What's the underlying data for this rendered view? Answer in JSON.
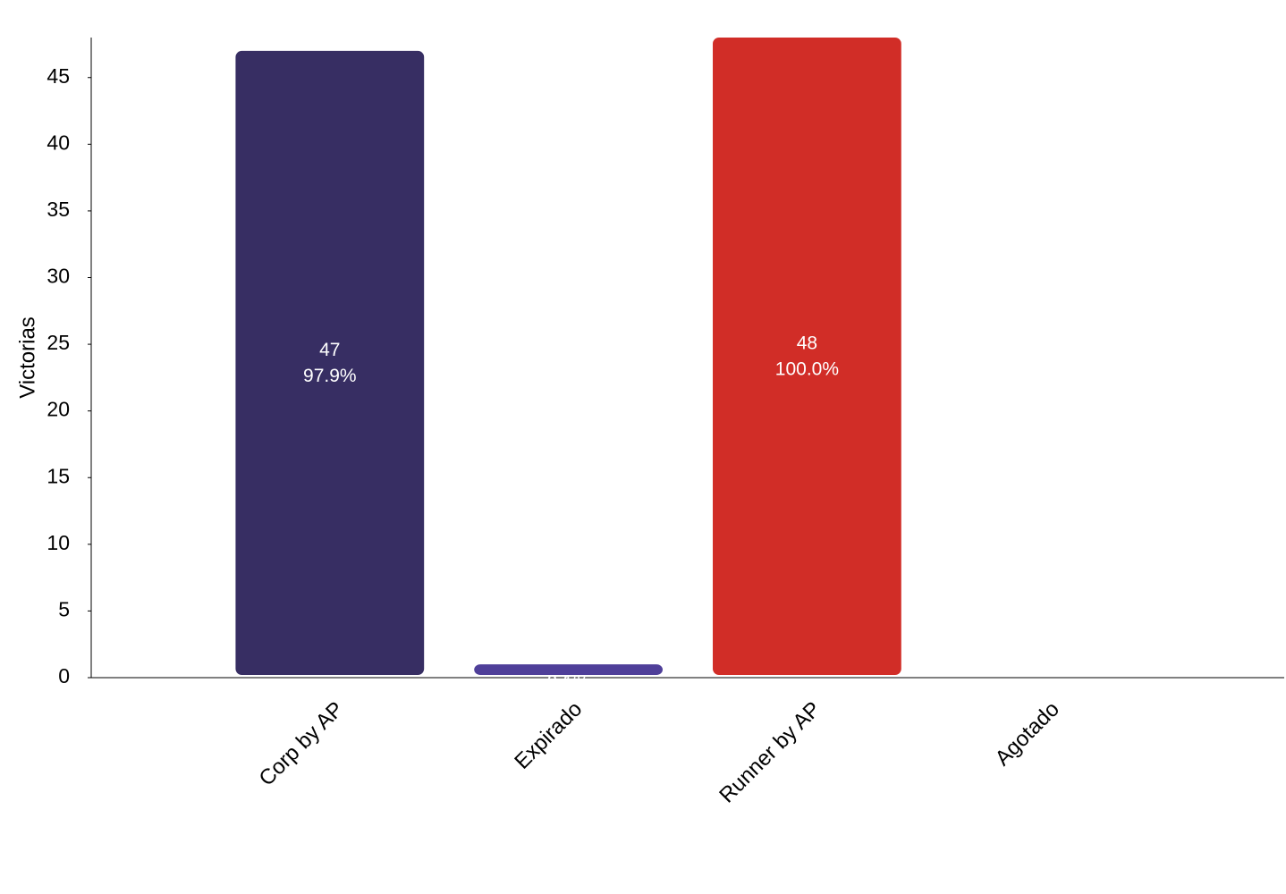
{
  "chart_data": {
    "type": "bar",
    "y_label": "Victorias",
    "categories": [
      "Corp by AP",
      "Expirado",
      "Runner by AP",
      "Agotado"
    ],
    "values": [
      47,
      1,
      48,
      0
    ],
    "percent_labels": [
      "97.9%",
      "2.1%",
      "100.0%",
      null
    ],
    "colors": [
      "#372e63",
      "#4f3f99",
      "#d12d27",
      "#e38b2a"
    ],
    "ylim": [
      0,
      48
    ],
    "yticks": [
      0,
      5,
      10,
      15,
      20,
      25,
      30,
      35,
      40,
      45
    ],
    "grid": false
  }
}
